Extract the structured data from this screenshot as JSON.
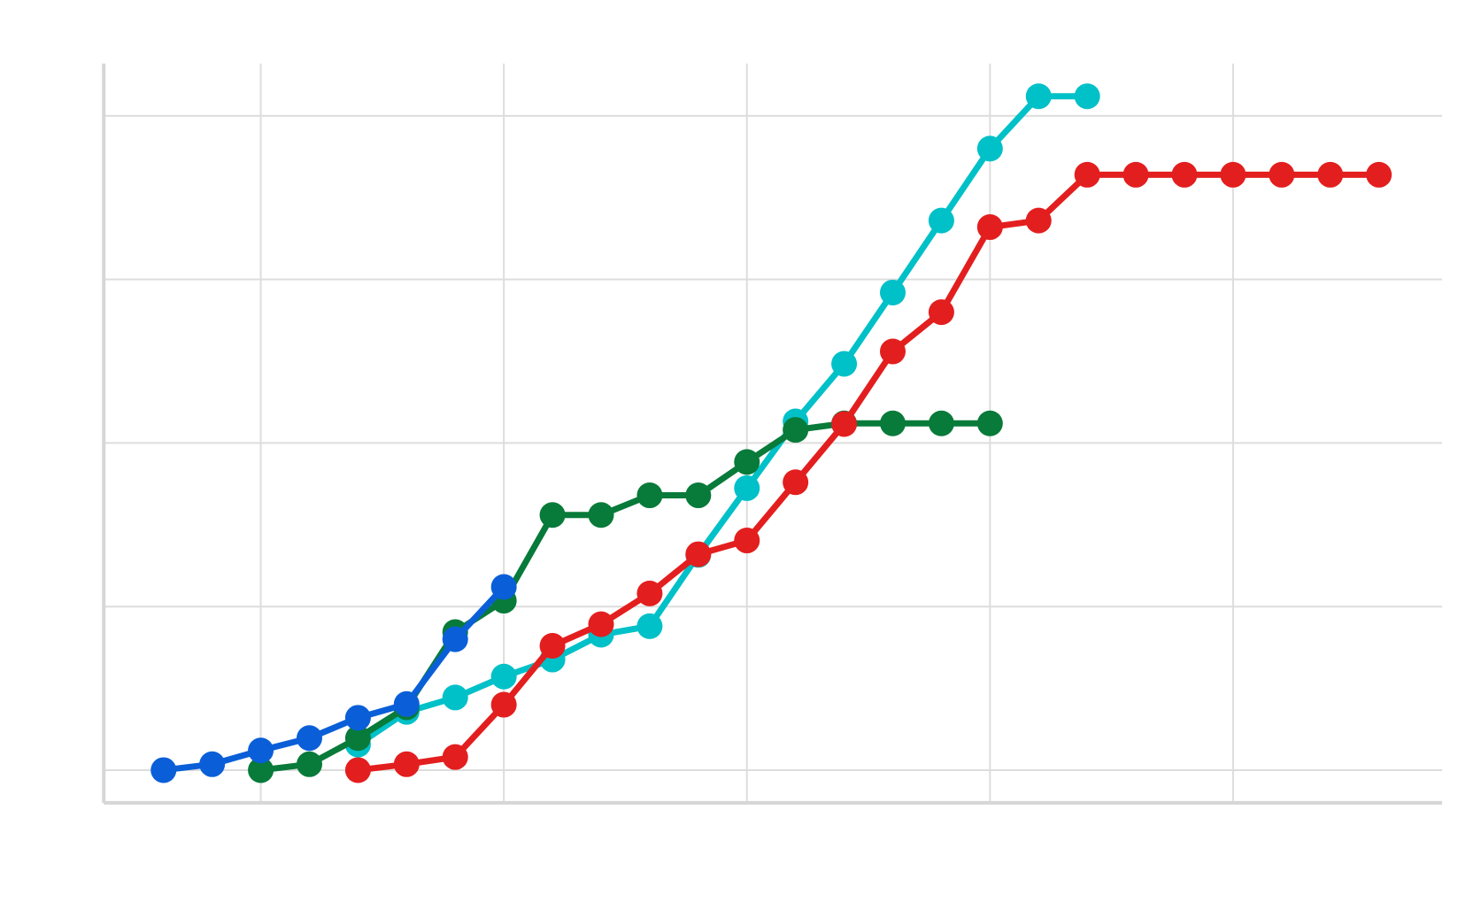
{
  "chart_data": {
    "type": "line",
    "xlim": [
      -1.23,
      26.3
    ],
    "xticks": [
      2,
      7,
      12,
      17,
      22
    ],
    "ylim": [
      -5,
      108
    ],
    "yticks": [
      0,
      25,
      50,
      75,
      100
    ],
    "grid": true,
    "series": [
      {
        "color": "#00c0c8",
        "x": [
          4,
          5,
          6,
          7,
          8,
          9,
          10,
          11,
          12,
          13,
          14,
          15,
          16,
          17,
          18,
          19
        ],
        "values": [
          3.9,
          8.9,
          11.1,
          14.3,
          16.9,
          20.7,
          22,
          32.9,
          43.1,
          53.3,
          62.1,
          73,
          84,
          95,
          103,
          103
        ]
      },
      {
        "color": "#087a3a",
        "x": [
          2,
          3,
          4,
          5,
          6,
          7,
          8,
          9,
          10,
          11,
          12,
          13,
          14,
          15,
          16,
          17
        ],
        "values": [
          0,
          0.9,
          4.9,
          9.6,
          21.1,
          25.9,
          39,
          39,
          42,
          42,
          47.1,
          52,
          53,
          53,
          53,
          53
        ]
      },
      {
        "color": "#e31e1e",
        "x": [
          4,
          5,
          6,
          7,
          8,
          9,
          10,
          11,
          12,
          13,
          14,
          15,
          16,
          17,
          18,
          19,
          20,
          21,
          22,
          23,
          24,
          25
        ],
        "values": [
          0,
          0.9,
          2,
          10,
          19,
          22.3,
          27,
          33,
          35.1,
          44,
          52.9,
          64,
          70,
          83,
          84,
          91,
          91,
          91,
          91,
          91,
          91,
          91
        ]
      },
      {
        "color": "#0a5fd8",
        "x": [
          0,
          1,
          2,
          3,
          4,
          5,
          6,
          7
        ],
        "values": [
          0,
          0.9,
          3,
          4.9,
          8,
          10.1,
          20,
          28
        ]
      }
    ]
  }
}
